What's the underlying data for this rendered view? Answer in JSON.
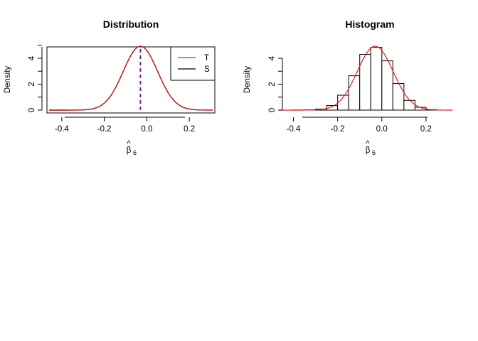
{
  "chart_data": [
    {
      "type": "line",
      "title": "Distribution",
      "xlabel": "β̂6",
      "xlabel_base": "β",
      "xlabel_hat": "^",
      "xlabel_sub": "6",
      "ylabel": "Density",
      "xlim": [
        -0.47,
        0.32
      ],
      "ylim": [
        0,
        5
      ],
      "x_ticks": [
        -0.4,
        -0.2,
        0.0,
        0.2
      ],
      "x_tick_labels": [
        "-0.4",
        "-0.2",
        "0.0",
        "0.2"
      ],
      "y_ticks": [
        0,
        2,
        4
      ],
      "y_tick_labels": [
        "0",
        "2",
        "4"
      ],
      "y_minor_ticks": [
        1,
        3,
        5
      ],
      "curve": {
        "mean": -0.03,
        "sd": 0.081,
        "x_start": -0.46,
        "x_end": 0.31
      },
      "series": [
        {
          "name": "T",
          "color": "#e31a1c"
        },
        {
          "name": "S",
          "color": "#000000"
        }
      ],
      "vline": {
        "x": -0.03,
        "color": "#5e2a8c",
        "style": "dashed"
      },
      "legend": "top-right",
      "grid": false
    },
    {
      "type": "bar",
      "title": "Histogram",
      "xlabel": "β̂6",
      "xlabel_base": "β",
      "xlabel_hat": "^",
      "xlabel_sub": "6",
      "ylabel": "Density",
      "xlim": [
        -0.45,
        0.3
      ],
      "ylim": [
        0,
        5
      ],
      "x_ticks": [
        -0.4,
        -0.2,
        0.0,
        0.2
      ],
      "x_tick_labels": [
        "-0.4",
        "-0.2",
        "0.0",
        "0.2"
      ],
      "y_ticks": [
        0,
        2,
        4
      ],
      "y_tick_labels": [
        "0",
        "2",
        "4"
      ],
      "y_minor_ticks": [
        1,
        3
      ],
      "bin_edges": [
        -0.45,
        -0.4,
        -0.35,
        -0.3,
        -0.25,
        -0.2,
        -0.15,
        -0.1,
        -0.05,
        0.0,
        0.05,
        0.1,
        0.15,
        0.2,
        0.25,
        0.3
      ],
      "densities": [
        0.0,
        0.01,
        0.02,
        0.08,
        0.35,
        1.15,
        2.65,
        4.3,
        4.85,
        3.8,
        2.05,
        0.75,
        0.22,
        0.04,
        0.0
      ],
      "curve": {
        "mean": -0.03,
        "sd": 0.081,
        "x_start": -0.46,
        "x_end": 0.32,
        "color": "#e31a1c"
      },
      "grid": false
    }
  ]
}
